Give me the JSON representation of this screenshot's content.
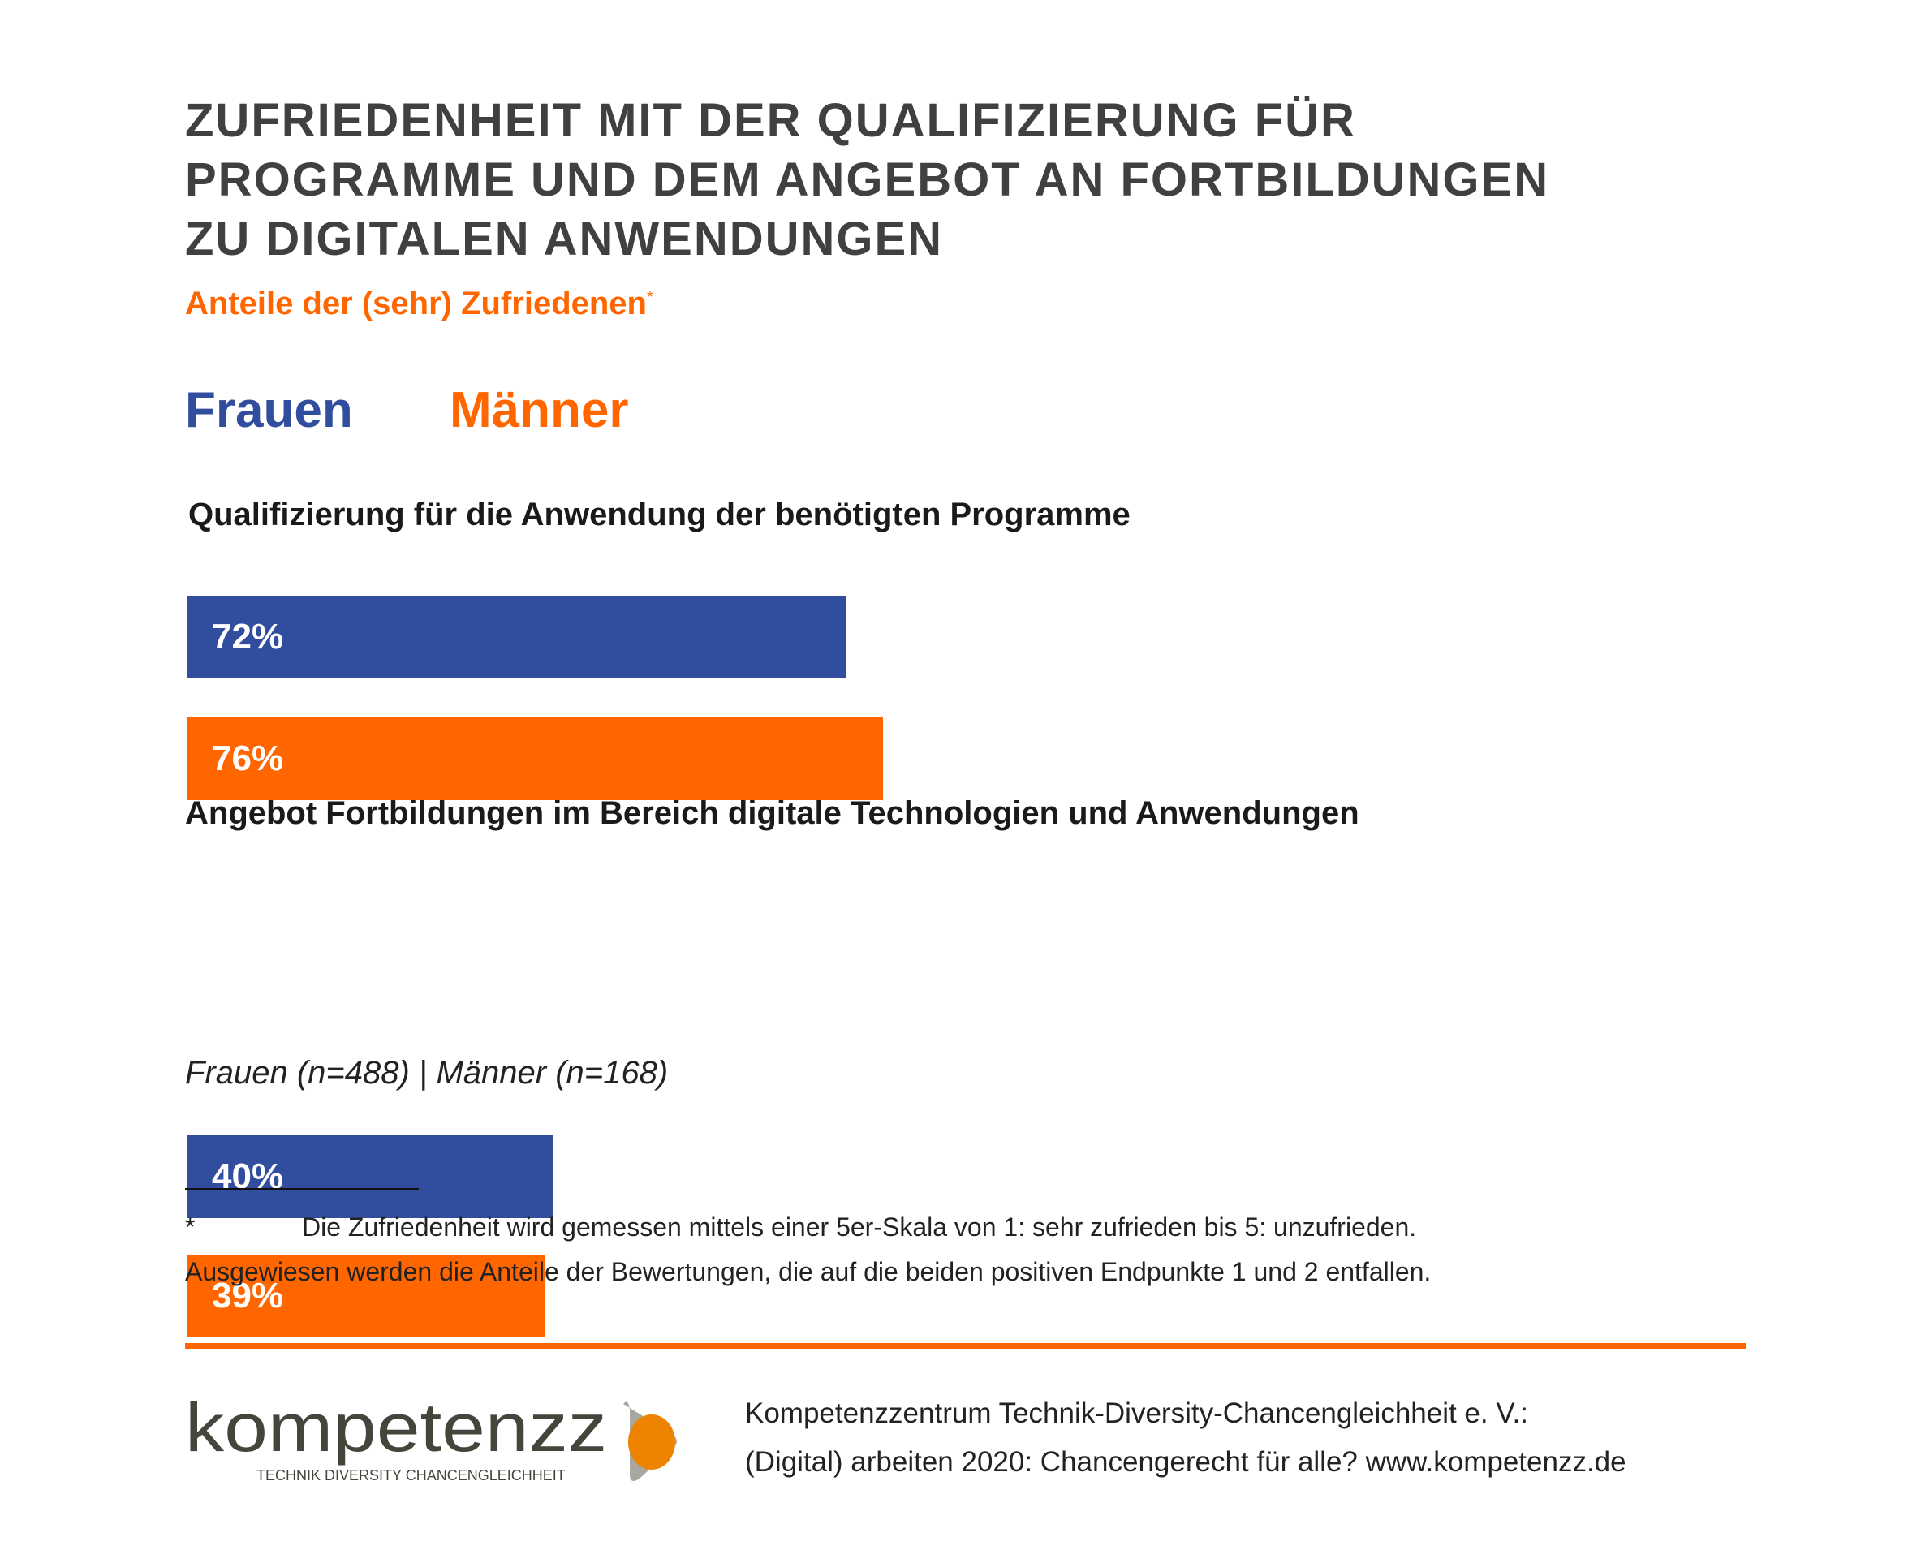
{
  "title_lines": [
    "ZUFRIEDENHEIT MIT DER QUALIFIZIERUNG FÜR",
    "PROGRAMME UND DEM ANGEBOT AN FORTBILDUNGEN",
    "ZU DIGITALEN ANWENDUNGEN"
  ],
  "subtitle": "Anteile der (sehr) Zufriedenen",
  "subtitle_mark": "*",
  "colors": {
    "frauen": "#314e9e",
    "maenner": "#ff6600",
    "title": "#404040"
  },
  "chart_data": {
    "type": "bar",
    "orientation": "horizontal",
    "categories": [
      "Qualifizierung für die Anwendung der benötigten Programme",
      "Angebot Fortbildungen im Bereich digitale Technologien und Anwendungen"
    ],
    "series": [
      {
        "name": "Frauen",
        "values": [
          72,
          40
        ],
        "labels": [
          "72%",
          "40%"
        ]
      },
      {
        "name": "Männer",
        "values": [
          76,
          39
        ],
        "labels": [
          "76%",
          "39%"
        ]
      }
    ],
    "unit": "%",
    "legend": "top-left"
  },
  "sample_note": "Frauen (n=488) | Männer (n=168)",
  "footnote": {
    "mark": "*",
    "line1": "Die Zufriedenheit wird gemessen mittels einer 5er-Skala von 1: sehr zufrieden bis 5: unzufrieden.",
    "line2": "Ausgewiesen werden die Anteile der Bewertungen, die auf die beiden positiven Endpunkte 1 und 2 entfallen."
  },
  "logo": {
    "word": "kompetenzz",
    "tagline": "TECHNIK DIVERSITY CHANCENGLEICHHEIT"
  },
  "source": {
    "line1": "Kompetenzzentrum Technik-Diversity-Chancengleichheit e. V.:",
    "line2": "(Digital) arbeiten 2020: Chancengerecht für alle? www.kompetenzz.de"
  }
}
